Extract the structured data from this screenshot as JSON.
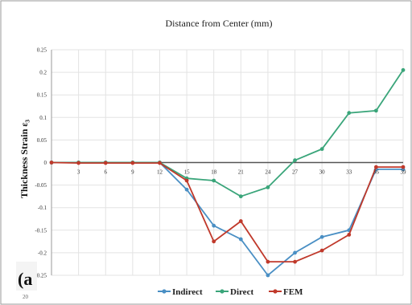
{
  "chart_data": {
    "type": "line",
    "title": "Distance from Center (mm)",
    "ylabel": "Thickness Strain ε₃",
    "xlabel": "",
    "x_ticks": [
      "3",
      "6",
      "9",
      "12",
      "15",
      "18",
      "21",
      "24",
      "27",
      "30",
      "33",
      "36",
      "39"
    ],
    "x": [
      0,
      3,
      6,
      9,
      12,
      15,
      18,
      21,
      24,
      27,
      30,
      33,
      36,
      39
    ],
    "ylim": [
      -0.25,
      0.25
    ],
    "y_ticks": [
      {
        "value": 0.25,
        "label": "0.25"
      },
      {
        "value": 0.2,
        "label": "0.2"
      },
      {
        "value": 0.15,
        "label": "0.15"
      },
      {
        "value": 0.1,
        "label": "0.1"
      },
      {
        "value": 0.05,
        "label": "0.05"
      },
      {
        "value": 0,
        "label": "0"
      },
      {
        "value": -0.05,
        "label": "-0.05"
      },
      {
        "value": -0.1,
        "label": "-0.1"
      },
      {
        "value": -0.15,
        "label": "-0.15"
      },
      {
        "value": -0.2,
        "label": "-0.2"
      },
      {
        "value": -0.25,
        "label": "-0.25"
      }
    ],
    "grid": true,
    "legend_position": "bottom",
    "series": [
      {
        "name": "Indirect",
        "color": "#4a8fc4",
        "values": [
          0,
          0,
          0,
          0,
          0,
          -0.06,
          -0.14,
          -0.17,
          -0.25,
          -0.2,
          -0.165,
          -0.15,
          -0.015,
          -0.015
        ]
      },
      {
        "name": "Direct",
        "color": "#3aa57a",
        "values": [
          0,
          0,
          0,
          0,
          0,
          -0.035,
          -0.04,
          -0.075,
          -0.055,
          0.005,
          0.03,
          0.11,
          0.115,
          0.205
        ]
      },
      {
        "name": "FEM",
        "color": "#c0392b",
        "values": [
          0,
          -0.001,
          -0.001,
          -0.001,
          -0.001,
          -0.04,
          -0.175,
          -0.13,
          -0.22,
          -0.22,
          -0.195,
          -0.16,
          -0.01,
          -0.01
        ]
      }
    ]
  },
  "panel_label": "(a",
  "corner_label": "20"
}
